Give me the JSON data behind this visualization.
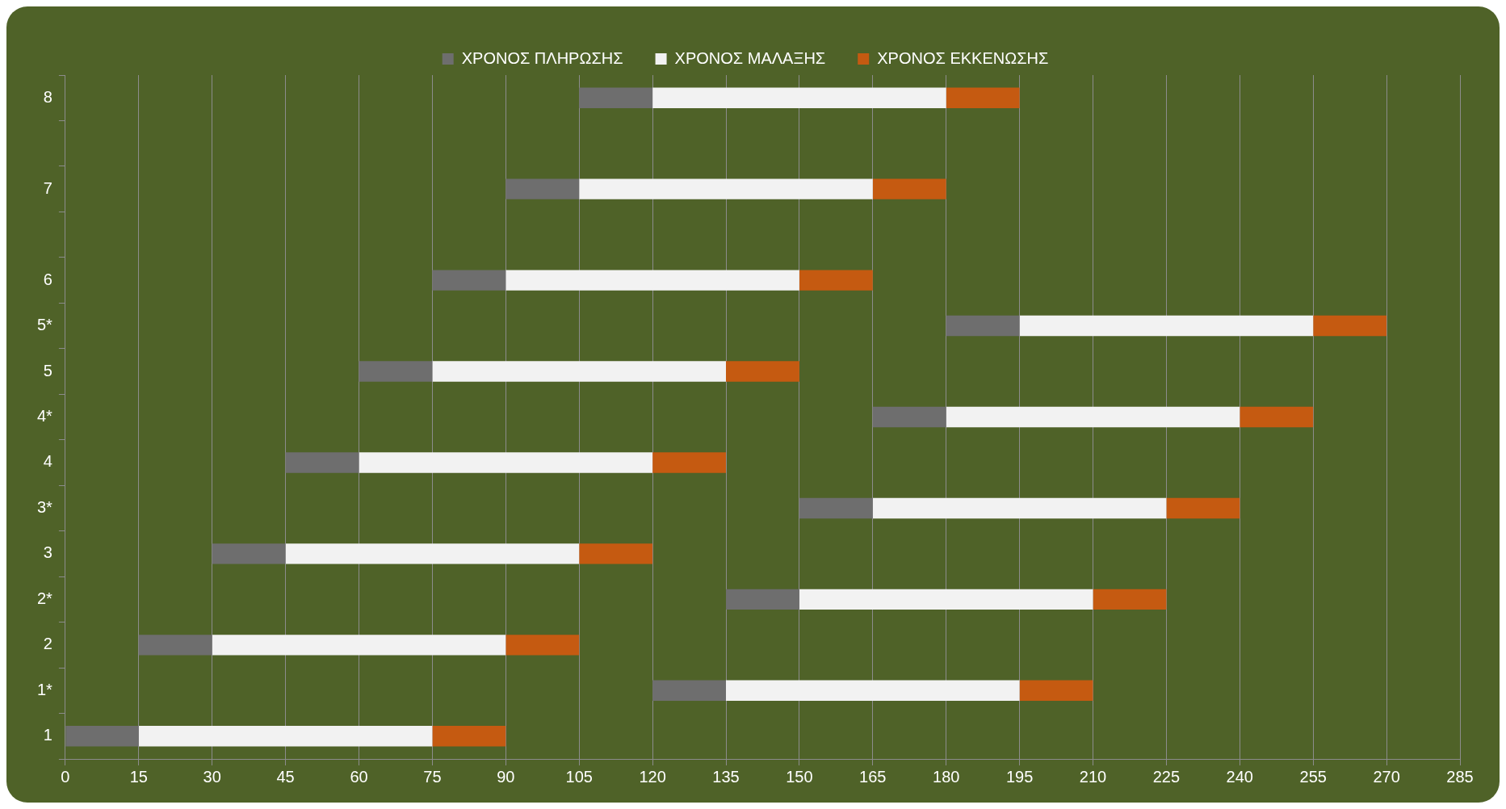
{
  "chart_data": {
    "type": "bar",
    "orientation": "horizontal",
    "categories": [
      "8",
      null,
      "7",
      null,
      "6",
      "5*",
      "5",
      "4*",
      "4",
      "3*",
      "3",
      "2*",
      "2",
      "1*",
      "1"
    ],
    "series": [
      {
        "name": "ΧΡΟΝΟΣ ΠΛΗΡΩΣΗΣ",
        "color": "#6e6e6e",
        "base": [
          105,
          null,
          90,
          null,
          75,
          180,
          60,
          165,
          45,
          150,
          30,
          135,
          15,
          120,
          0
        ],
        "values": [
          15,
          null,
          15,
          null,
          15,
          15,
          15,
          15,
          15,
          15,
          15,
          15,
          15,
          15,
          15
        ]
      },
      {
        "name": "ΧΡΟΝΟΣ ΜΑΛΑΞΗΣ",
        "color": "#f2f2f2",
        "base": [
          120,
          null,
          105,
          null,
          90,
          195,
          75,
          180,
          60,
          165,
          45,
          150,
          30,
          135,
          15
        ],
        "values": [
          60,
          null,
          60,
          null,
          60,
          60,
          60,
          60,
          60,
          60,
          60,
          60,
          60,
          60,
          60
        ]
      },
      {
        "name": "ΧΡΟΝΟΣ ΕΚΚΕΝΩΣΗΣ",
        "color": "#c55a11",
        "base": [
          180,
          null,
          165,
          null,
          150,
          255,
          135,
          240,
          120,
          225,
          105,
          210,
          90,
          195,
          75
        ],
        "values": [
          15,
          null,
          15,
          null,
          15,
          15,
          15,
          15,
          15,
          15,
          15,
          15,
          15,
          15,
          15
        ]
      }
    ],
    "xlim": [
      0,
      285
    ],
    "xticks": [
      0,
      15,
      30,
      45,
      60,
      75,
      90,
      105,
      120,
      135,
      150,
      165,
      180,
      195,
      210,
      225,
      240,
      255,
      270,
      285
    ],
    "grid": "x",
    "legend": "top"
  }
}
